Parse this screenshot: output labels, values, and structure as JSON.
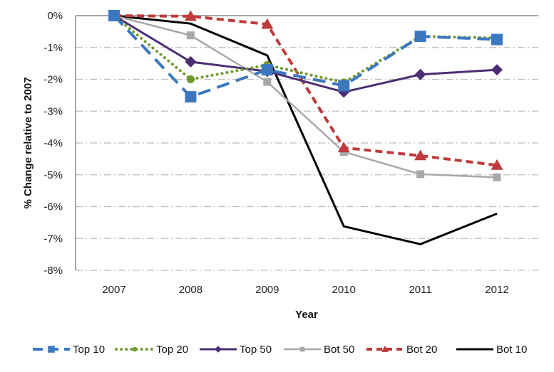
{
  "chart_data": {
    "type": "line",
    "title": "",
    "xlabel": "Year",
    "ylabel": "% Change relative to 2007",
    "x": [
      "2007",
      "2008",
      "2009",
      "2010",
      "2011",
      "2012"
    ],
    "ylim": [
      -8,
      0
    ],
    "yticks": [
      0,
      -1,
      -2,
      -3,
      -4,
      -5,
      -6,
      -7,
      -8
    ],
    "ytick_labels": [
      "0%",
      "-1%",
      "-2%",
      "-3%",
      "-4%",
      "-5%",
      "-6%",
      "-7%",
      "-8%"
    ],
    "grid": "horizontal dash-dot",
    "legend_position": "bottom",
    "series": [
      {
        "name": "Top 10",
        "values": [
          0,
          -2.55,
          -1.7,
          -2.2,
          -0.65,
          -0.75
        ],
        "color": "#3B78C0",
        "dash": "long-dash",
        "marker": "square"
      },
      {
        "name": "Top 20",
        "values": [
          0,
          -2.0,
          -1.55,
          -2.1,
          -0.65,
          -0.7
        ],
        "color": "#6E9A2E",
        "dash": "dotted",
        "marker": "circle"
      },
      {
        "name": "Top 50",
        "values": [
          0,
          -1.45,
          -1.75,
          -2.4,
          -1.85,
          -1.7
        ],
        "color": "#4B2E73",
        "dash": "solid",
        "marker": "diamond"
      },
      {
        "name": "Bot 50",
        "values": [
          0,
          -0.62,
          -2.08,
          -4.28,
          -4.98,
          -5.08
        ],
        "color": "#A8A8A8",
        "dash": "solid",
        "marker": "small-square"
      },
      {
        "name": "Bot 20",
        "values": [
          0,
          -0.02,
          -0.27,
          -4.15,
          -4.4,
          -4.7
        ],
        "color": "#BF3A3A",
        "dash": "short-dash",
        "marker": "triangle"
      },
      {
        "name": "Bot 10",
        "values": [
          0,
          -0.25,
          -1.25,
          -6.62,
          -7.18,
          -6.22
        ],
        "color": "#000000",
        "dash": "solid",
        "marker": "none"
      }
    ]
  }
}
